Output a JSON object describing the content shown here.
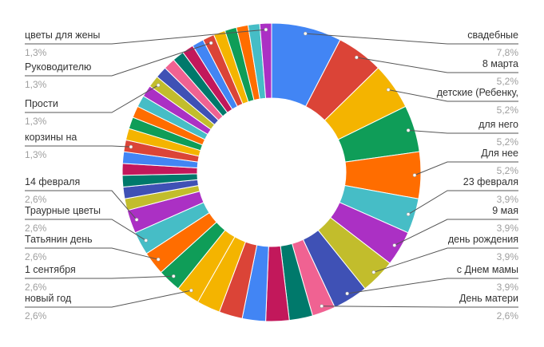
{
  "chart_data": {
    "type": "pie",
    "donut": true,
    "title": "",
    "slices_right": [
      {
        "label": "свадебные",
        "pct_label": "7,8%",
        "value": 7.8,
        "color": "#4285f4"
      },
      {
        "label": "8 марта",
        "pct_label": "5,2%",
        "value": 5.2,
        "color": "#db4437"
      },
      {
        "label": "детские (Ребенку,",
        "pct_label": "5,2%",
        "value": 5.2,
        "color": "#f4b400"
      },
      {
        "label": "для него",
        "pct_label": "5,2%",
        "value": 5.2,
        "color": "#0f9d58"
      },
      {
        "label": "Для нее",
        "pct_label": "5,2%",
        "value": 5.2,
        "color": "#ff6d00"
      },
      {
        "label": "23 февраля",
        "pct_label": "3,9%",
        "value": 3.9,
        "color": "#46bdc6"
      },
      {
        "label": "9 мая",
        "pct_label": "3,9%",
        "value": 3.9,
        "color": "#ab30c4"
      },
      {
        "label": "день рождения",
        "pct_label": "3,9%",
        "value": 3.9,
        "color": "#c2bd2c"
      },
      {
        "label": "с Днем мамы",
        "pct_label": "3,9%",
        "value": 3.9,
        "color": "#3f51b5"
      },
      {
        "label": "День матери",
        "pct_label": "2,6%",
        "value": 2.6,
        "color": "#f06292"
      }
    ],
    "slices_middle": [
      {
        "value": 2.6,
        "color": "#00796b"
      },
      {
        "value": 2.6,
        "color": "#c2185b"
      },
      {
        "value": 2.6,
        "color": "#4285f4"
      },
      {
        "value": 2.6,
        "color": "#db4437"
      },
      {
        "value": 2.6,
        "color": "#f4b400"
      }
    ],
    "slices_left": [
      {
        "label": "новый год",
        "pct_label": "2,6%",
        "value": 2.6,
        "color": "#f4b400"
      },
      {
        "label": "1 сентября",
        "pct_label": "2,6%",
        "value": 2.6,
        "color": "#0f9d58"
      },
      {
        "label": "Татьянин день",
        "pct_label": "2,6%",
        "value": 2.6,
        "color": "#ff6d00"
      },
      {
        "label": "Траурные цветы",
        "pct_label": "2,6%",
        "value": 2.6,
        "color": "#46bdc6"
      },
      {
        "label": "14 февраля",
        "pct_label": "2,6%",
        "value": 2.6,
        "color": "#ab30c4"
      }
    ],
    "slices_small": [
      {
        "value": 1.3,
        "color": "#c2bd2c"
      },
      {
        "value": 1.3,
        "color": "#3f51b5"
      },
      {
        "value": 1.3,
        "color": "#00796b"
      },
      {
        "value": 1.3,
        "color": "#c2185b"
      },
      {
        "value": 1.3,
        "color": "#4285f4"
      },
      {
        "value": 1.3,
        "color": "#db4437"
      },
      {
        "value": 1.3,
        "color": "#f4b400"
      },
      {
        "value": 1.3,
        "color": "#0f9d58"
      },
      {
        "value": 1.3,
        "color": "#ff6d00"
      },
      {
        "value": 1.3,
        "color": "#46bdc6"
      },
      {
        "value": 1.3,
        "color": "#ab30c4"
      },
      {
        "value": 1.3,
        "color": "#c2bd2c"
      },
      {
        "value": 1.3,
        "color": "#3f51b5"
      },
      {
        "value": 1.3,
        "color": "#f06292"
      },
      {
        "value": 1.3,
        "color": "#00796b"
      },
      {
        "value": 1.3,
        "color": "#c2185b"
      },
      {
        "value": 1.3,
        "color": "#4285f4"
      },
      {
        "value": 1.3,
        "color": "#db4437"
      },
      {
        "value": 1.3,
        "color": "#f4b400"
      },
      {
        "value": 1.3,
        "color": "#0f9d58"
      },
      {
        "value": 1.3,
        "color": "#ff6d00"
      },
      {
        "value": 1.3,
        "color": "#46bdc6"
      },
      {
        "value": 1.3,
        "color": "#ab30c4"
      }
    ],
    "small_labels": [
      {
        "label": "корзины на",
        "pct_label": "1,3%",
        "slice_index": 5
      },
      {
        "label": "Прости",
        "pct_label": "1,3%",
        "slice_index": 11
      },
      {
        "label": "Руководителю",
        "pct_label": "1,3%",
        "slice_index": 17
      },
      {
        "label": "цветы для жены",
        "pct_label": "1,3%",
        "slice_index": 22
      }
    ]
  }
}
